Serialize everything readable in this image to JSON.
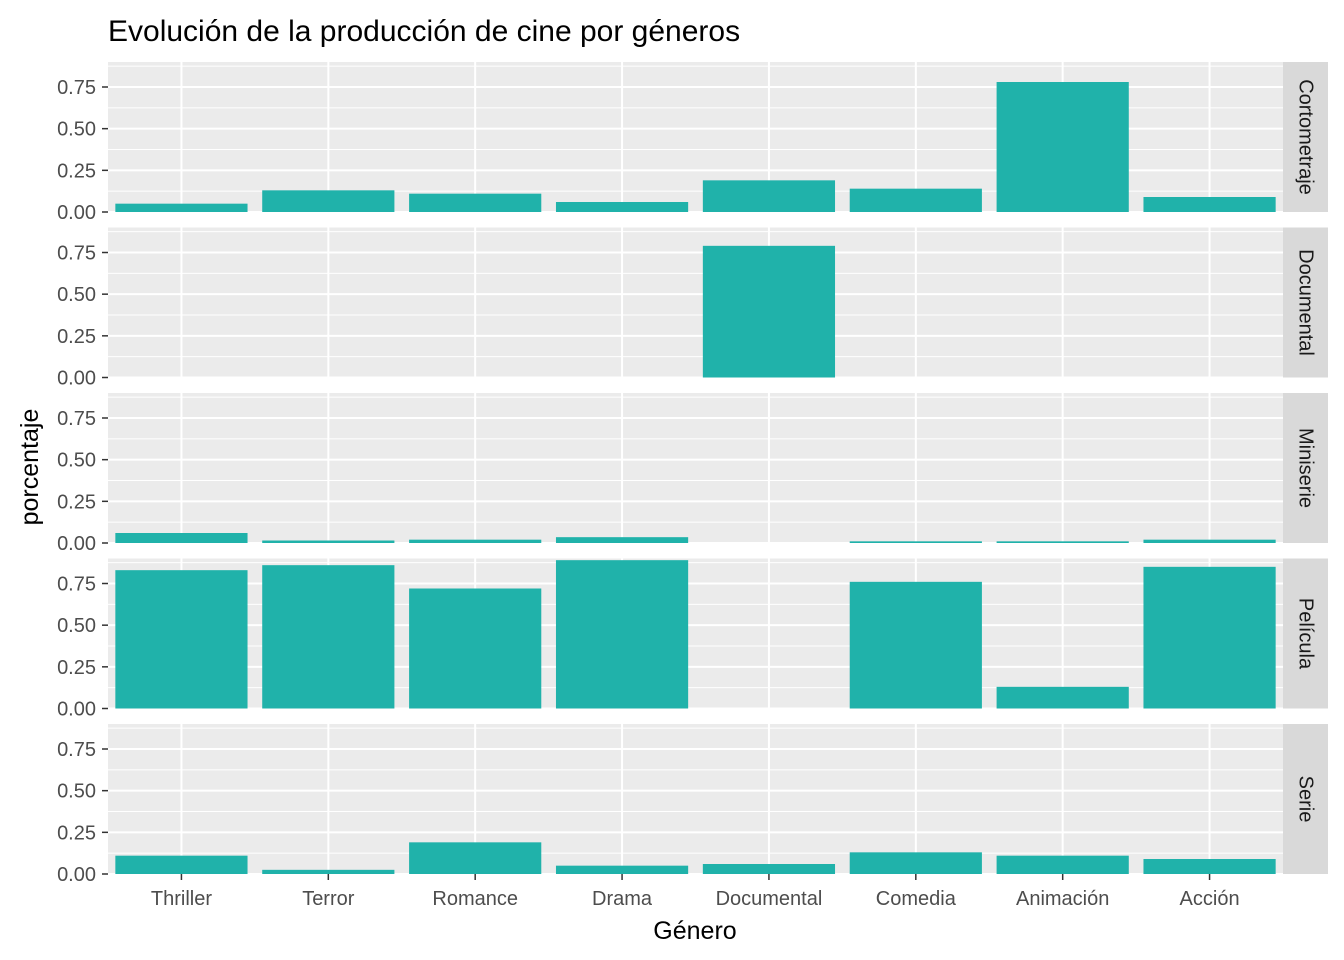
{
  "chart_data": {
    "type": "bar",
    "title": "Evolución de la producción de cine por géneros",
    "xlabel": "Género",
    "ylabel": "porcentaje",
    "categories": [
      "Thriller",
      "Terror",
      "Romance",
      "Drama",
      "Documental",
      "Comedia",
      "Animación",
      "Acción"
    ],
    "ylim": [
      0,
      0.9
    ],
    "yticks": [
      "0.00",
      "0.25",
      "0.50",
      "0.75"
    ],
    "grid": true,
    "facet": "rows",
    "bar_color": "#20B2AA",
    "panel_bg": "#EBEBEB",
    "strip_bg": "#D9D9D9",
    "series": [
      {
        "name": "Cortometraje",
        "values": [
          0.05,
          0.13,
          0.11,
          0.06,
          0.19,
          0.14,
          0.78,
          0.09
        ]
      },
      {
        "name": "Documental",
        "values": [
          0.0,
          0.0,
          0.0,
          0.0,
          0.79,
          0.0,
          0.0,
          0.0
        ]
      },
      {
        "name": "Miniserie",
        "values": [
          0.06,
          0.015,
          0.02,
          0.035,
          0.0,
          0.01,
          0.01,
          0.02
        ]
      },
      {
        "name": "Película",
        "values": [
          0.83,
          0.86,
          0.72,
          0.89,
          0.0,
          0.76,
          0.13,
          0.85
        ]
      },
      {
        "name": "Serie",
        "values": [
          0.11,
          0.025,
          0.19,
          0.05,
          0.06,
          0.13,
          0.11,
          0.09
        ]
      }
    ]
  }
}
